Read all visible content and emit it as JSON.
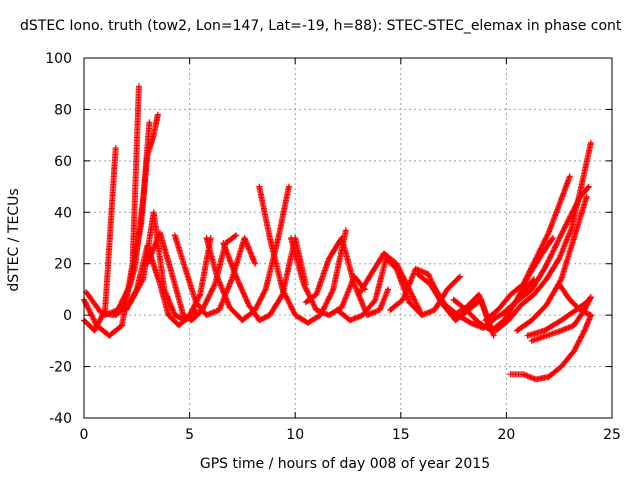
{
  "title": "dSTEC Iono. truth (tow2, Lon=147, Lat=-19, h=88): STEC-STEC_elemax in phase cont",
  "chart_data": {
    "type": "scatter",
    "marker": "+",
    "color": "#ff0000",
    "xlabel": "GPS time / hours of day 008 of year 2015",
    "ylabel": "dSTEC  / TECUs",
    "xlim": [
      0,
      25
    ],
    "ylim": [
      -40,
      100
    ],
    "xticks": [
      0,
      5,
      10,
      15,
      20,
      25
    ],
    "yticks": [
      -40,
      -20,
      0,
      20,
      40,
      60,
      80,
      100
    ],
    "grid": true,
    "series": [
      {
        "x": [
          0.0,
          0.6,
          1.2,
          1.8,
          2.3,
          2.6
        ],
        "y": [
          6,
          -4,
          -8,
          -4,
          20,
          89
        ]
      },
      {
        "x": [
          0.1,
          0.8,
          1.4,
          1.9,
          2.4,
          2.8,
          3.1
        ],
        "y": [
          9,
          1,
          0,
          5,
          18,
          45,
          75
        ]
      },
      {
        "x": [
          0.0,
          0.5,
          1.0,
          1.5
        ],
        "y": [
          -2,
          -6,
          2,
          65
        ]
      },
      {
        "x": [
          1.0,
          1.6,
          2.2,
          2.7,
          3.0,
          3.3,
          3.5
        ],
        "y": [
          0,
          2,
          12,
          35,
          62,
          70,
          78
        ]
      },
      {
        "x": [
          2.0,
          2.5,
          3.0,
          3.6,
          4.0,
          4.5,
          5.0,
          5.5,
          6.0
        ],
        "y": [
          2,
          10,
          27,
          12,
          0,
          -4,
          0,
          8,
          30
        ]
      },
      {
        "x": [
          1.5,
          2.2,
          2.8,
          3.3,
          3.8,
          4.3,
          4.8,
          5.3
        ],
        "y": [
          0,
          5,
          14,
          40,
          10,
          0,
          -2,
          2
        ]
      },
      {
        "x": [
          3.0,
          3.6,
          4.2,
          4.7,
          5.1,
          5.6,
          6.2,
          6.7,
          7.2
        ],
        "y": [
          20,
          32,
          15,
          0,
          -2,
          2,
          12,
          28,
          31
        ]
      },
      {
        "x": [
          4.3,
          4.8,
          5.3,
          5.8,
          6.4,
          7.0,
          7.6,
          8.1
        ],
        "y": [
          31,
          18,
          5,
          0,
          2,
          14,
          30,
          20
        ]
      },
      {
        "x": [
          5.8,
          6.3,
          6.9,
          7.5,
          8.1,
          8.6,
          9.2,
          9.7
        ],
        "y": [
          30,
          15,
          3,
          -2,
          2,
          10,
          30,
          50
        ]
      },
      {
        "x": [
          6.6,
          7.2,
          7.8,
          8.3,
          8.8,
          9.4,
          10.0,
          10.5
        ],
        "y": [
          28,
          15,
          4,
          -2,
          0,
          8,
          30,
          12
        ]
      },
      {
        "x": [
          8.3,
          8.8,
          9.4,
          10.0,
          10.6,
          11.2,
          11.8,
          12.4
        ],
        "y": [
          50,
          30,
          10,
          0,
          -3,
          0,
          10,
          33
        ]
      },
      {
        "x": [
          9.8,
          10.4,
          11.0,
          11.6,
          12.2,
          12.8,
          13.3
        ],
        "y": [
          30,
          12,
          2,
          0,
          3,
          15,
          10
        ]
      },
      {
        "x": [
          10.5,
          11.0,
          11.6,
          12.2,
          12.8,
          13.4,
          14.0,
          14.4
        ],
        "y": [
          5,
          8,
          22,
          30,
          12,
          0,
          2,
          10
        ]
      },
      {
        "x": [
          12.0,
          12.6,
          13.2,
          13.8,
          14.3,
          14.8,
          15.4,
          16.0
        ],
        "y": [
          2,
          -2,
          0,
          6,
          22,
          18,
          5,
          0
        ]
      },
      {
        "x": [
          13.0,
          13.6,
          14.2,
          14.8,
          15.4,
          16.0,
          16.6,
          17.2,
          17.8
        ],
        "y": [
          8,
          16,
          24,
          20,
          10,
          0,
          2,
          10,
          15
        ]
      },
      {
        "x": [
          14.5,
          15.1,
          15.7,
          16.3,
          16.9,
          17.5,
          18.1,
          18.7,
          19.3
        ],
        "y": [
          2,
          6,
          18,
          16,
          5,
          0,
          3,
          8,
          -6
        ]
      },
      {
        "x": [
          15.8,
          16.4,
          17.0,
          17.6,
          18.2,
          18.8,
          19.4
        ],
        "y": [
          16,
          12,
          4,
          -2,
          2,
          6,
          -8
        ]
      },
      {
        "x": [
          16.5,
          17.1,
          17.7,
          18.3,
          18.9,
          19.5,
          20.1,
          20.7,
          21.3
        ],
        "y": [
          12,
          4,
          0,
          -3,
          -5,
          -1,
          2,
          8,
          14
        ]
      },
      {
        "x": [
          17.5,
          18.1,
          18.7,
          19.3,
          19.9,
          20.5,
          21.1,
          21.7,
          22.2
        ],
        "y": [
          6,
          2,
          -3,
          -6,
          -2,
          6,
          16,
          24,
          30
        ]
      },
      {
        "x": [
          19.0,
          19.6,
          20.2,
          20.8,
          21.4,
          22.0,
          22.6,
          23.0
        ],
        "y": [
          -2,
          2,
          8,
          12,
          22,
          32,
          45,
          54
        ]
      },
      {
        "x": [
          19.5,
          20.1,
          20.7,
          21.3,
          21.9,
          22.5,
          23.1,
          23.6,
          24.0
        ],
        "y": [
          -6,
          -2,
          4,
          8,
          14,
          22,
          34,
          52,
          67
        ]
      },
      {
        "x": [
          20.0,
          20.6,
          21.2,
          21.8,
          22.4,
          23.0,
          23.5,
          23.9
        ],
        "y": [
          2,
          6,
          10,
          18,
          28,
          38,
          46,
          50
        ]
      },
      {
        "x": [
          20.5,
          21.2,
          21.9,
          22.6,
          23.2,
          23.8
        ],
        "y": [
          -6,
          -2,
          4,
          14,
          30,
          46
        ]
      },
      {
        "x": [
          21.0,
          21.8,
          22.6,
          23.3,
          23.8,
          24.0
        ],
        "y": [
          -8,
          -6,
          -2,
          2,
          5,
          7
        ]
      },
      {
        "x": [
          21.2,
          21.9,
          22.6,
          23.2,
          23.7,
          24.0
        ],
        "y": [
          -10,
          -8,
          -6,
          -4,
          2,
          7
        ]
      },
      {
        "x": [
          20.2,
          20.8,
          21.4,
          22.0,
          22.6,
          23.2,
          23.7,
          24.0
        ],
        "y": [
          -23,
          -23,
          -25,
          -24,
          -20,
          -14,
          -6,
          0
        ]
      },
      {
        "x": [
          22.5,
          23.0,
          23.5,
          24.0
        ],
        "y": [
          12,
          6,
          2,
          0
        ]
      }
    ]
  }
}
